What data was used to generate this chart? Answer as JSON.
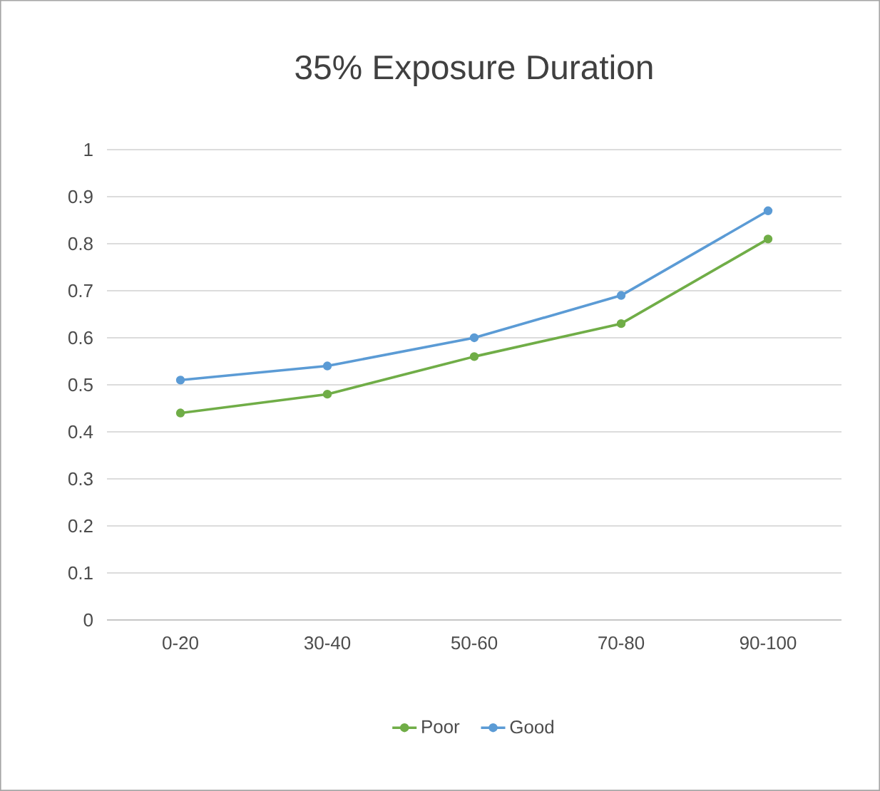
{
  "chart_data": {
    "type": "line",
    "title": "35% Exposure Duration",
    "categories": [
      "0-20",
      "30-40",
      "50-60",
      "70-80",
      "90-100"
    ],
    "series": [
      {
        "name": "Poor",
        "color": "#70ad47",
        "values": [
          0.44,
          0.48,
          0.56,
          0.63,
          0.81
        ]
      },
      {
        "name": "Good",
        "color": "#5b9bd5",
        "values": [
          0.51,
          0.54,
          0.6,
          0.69,
          0.87
        ]
      }
    ],
    "ylim": [
      0,
      1
    ],
    "yticks": [
      0,
      0.1,
      0.2,
      0.3,
      0.4,
      0.5,
      0.6,
      0.7,
      0.8,
      0.9,
      1
    ],
    "grid": "y",
    "legend": "bottom",
    "marker": "circle",
    "line_style": "solid"
  }
}
